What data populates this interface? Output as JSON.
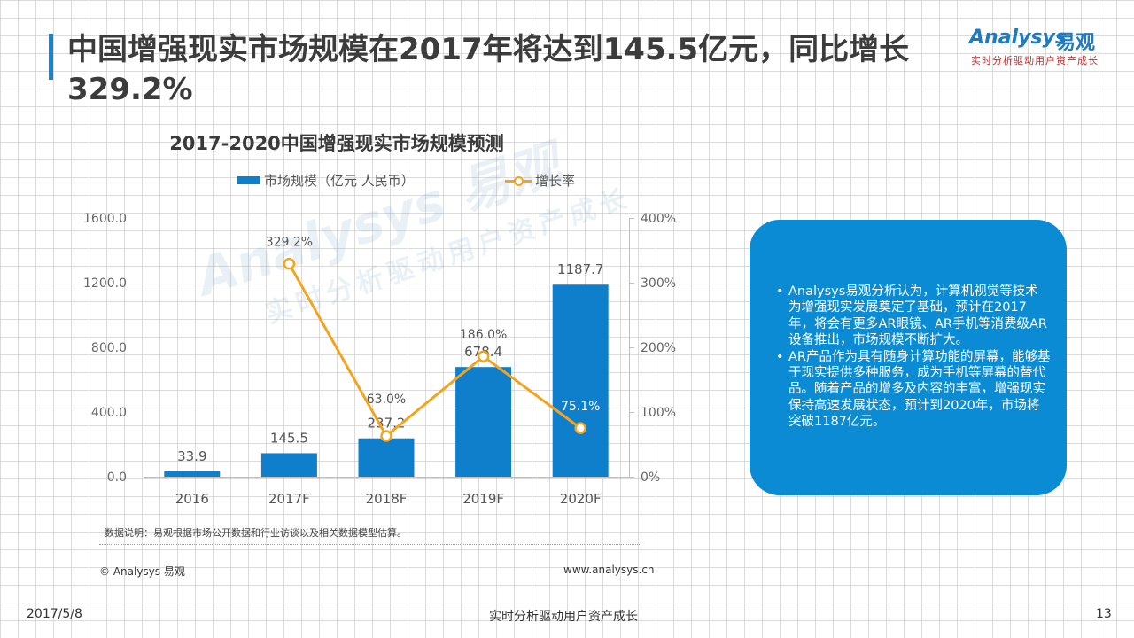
{
  "header": {
    "title": "中国增强现实市场规模在2017年将达到145.5亿元，同比增长329.2%"
  },
  "logo": {
    "name": "Analysys",
    "cn": "易观",
    "tagline": "实时分析驱动用户资产成长"
  },
  "watermark": {
    "line1": "Analysys 易观",
    "line2": "实时分析驱动用户资产成长"
  },
  "chart_data": {
    "type": "bar",
    "title": "2017-2020中国增强现实市场规模预测",
    "categories": [
      "2016",
      "2017F",
      "2018F",
      "2019F",
      "2020F"
    ],
    "series": [
      {
        "name": "市场规模（亿元 人民币）",
        "type": "bar",
        "axis": "left",
        "color": "#0f7fcc",
        "values": [
          33.9,
          145.5,
          237.2,
          678.4,
          1187.7
        ],
        "labels": [
          "33.9",
          "145.5",
          "237.2",
          "678.4",
          "1187.7"
        ]
      },
      {
        "name": "增长率",
        "type": "line",
        "axis": "right",
        "color": "#f3a41c",
        "values": [
          null,
          329.2,
          63.0,
          186.0,
          75.1
        ],
        "labels": [
          "",
          "329.2%",
          "63.0%",
          "186.0%",
          "75.1%"
        ]
      }
    ],
    "y_left": {
      "ylim": [
        0,
        1600
      ],
      "ticks": [
        "0.0",
        "400.0",
        "800.0",
        "1200.0",
        "1600.0"
      ]
    },
    "y_right": {
      "ylim": [
        0,
        400
      ],
      "ticks": [
        "0%",
        "100%",
        "200%",
        "300%",
        "400%"
      ]
    },
    "legend_position": "top",
    "grid": false
  },
  "source": {
    "note": "数据说明：易观根据市场公开数据和行业访谈以及相关数据模型估算。",
    "copyright": "© Analysys 易观",
    "website": "www.analysys.cn"
  },
  "info_box": {
    "points": [
      "Analysys易观分析认为，计算机视觉等技术为增强现实发展奠定了基础，预计在2017年，将会有更多AR眼镜、AR手机等消费级AR设备推出，市场规模不断扩大。",
      "AR产品作为具有随身计算功能的屏幕，能够基于现实提供多种服务，成为手机等屏幕的替代品。随着产品的增多及内容的丰富，增强现实保持高速发展状态，预计到2020年，市场将突破1187亿元。"
    ],
    "color": "#0a8bd3"
  },
  "footer": {
    "date": "2017/5/8",
    "slogan": "实时分析驱动用户资产成长",
    "page": "13"
  }
}
